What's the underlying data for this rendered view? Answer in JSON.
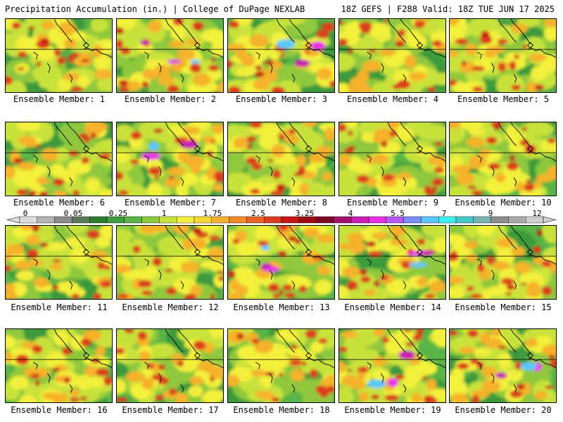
{
  "header": {
    "title": "Precipitation Accumulation (in.) | College of DuPage NEXLAB",
    "run_info": "18Z GEFS | F288 Valid: 18Z TUE JUN 17 2025"
  },
  "legend": {
    "tick_labels": [
      "0",
      "0.05",
      "0.25",
      "1",
      "1.75",
      "2.5",
      "3.25",
      "4",
      "5.5",
      "7",
      "9",
      "12"
    ],
    "colors": [
      "#dcdcdc",
      "#b4b4b4",
      "#8c8c8c",
      "#5a7a5a",
      "#2f7d32",
      "#3f9c3f",
      "#58b446",
      "#8fc83c",
      "#c9e23a",
      "#f2f03a",
      "#f7d630",
      "#f5b22b",
      "#f08c28",
      "#e86424",
      "#dc3c1e",
      "#c81414",
      "#a00a14",
      "#7a0a28",
      "#a0106e",
      "#c81eb4",
      "#e632e6",
      "#b45af0",
      "#7a8cf5",
      "#5ac8fa",
      "#3cf0f0",
      "#46c8c8",
      "#78b4b4",
      "#8c8c8c",
      "#aaaaaa",
      "#cfcfcf"
    ]
  },
  "panels": [
    {
      "label": "Ensemble Member: 1"
    },
    {
      "label": "Ensemble Member: 2"
    },
    {
      "label": "Ensemble Member: 3"
    },
    {
      "label": "Ensemble Member: 4"
    },
    {
      "label": "Ensemble Member: 5"
    },
    {
      "label": "Ensemble Member: 6"
    },
    {
      "label": "Ensemble Member: 7"
    },
    {
      "label": "Ensemble Member: 8"
    },
    {
      "label": "Ensemble Member: 9"
    },
    {
      "label": "Ensemble Member: 10"
    },
    {
      "label": "Ensemble Member: 11"
    },
    {
      "label": "Ensemble Member: 12"
    },
    {
      "label": "Ensemble Member: 13"
    },
    {
      "label": "Ensemble Member: 14"
    },
    {
      "label": "Ensemble Member: 15"
    },
    {
      "label": "Ensemble Member: 16"
    },
    {
      "label": "Ensemble Member: 17"
    },
    {
      "label": "Ensemble Member: 18"
    },
    {
      "label": "Ensemble Member: 19"
    },
    {
      "label": "Ensemble Member: 20"
    }
  ]
}
